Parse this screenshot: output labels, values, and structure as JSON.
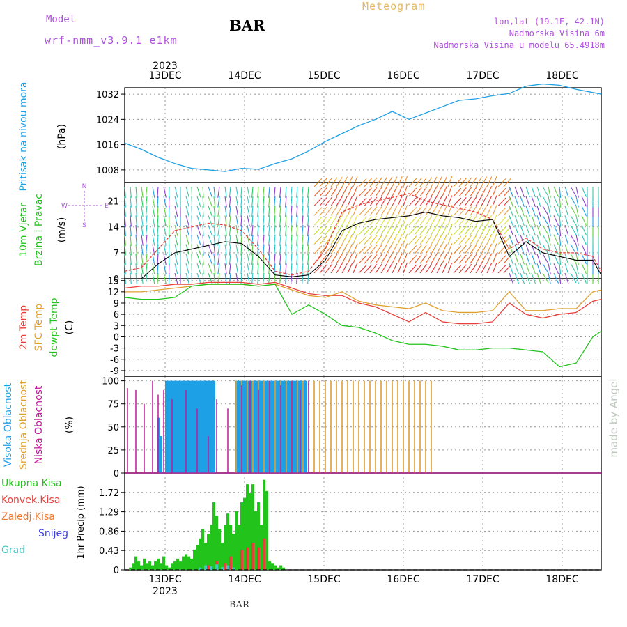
{
  "header": {
    "model_label": "Model",
    "model_name": "wrf-nmm_v3.9.1 e1km",
    "station": "BAR",
    "chart_title": "Meteogram",
    "lonlat": "lon,lat (19.1E, 42.1N)",
    "elevation": "Nadmorska Visina 6m",
    "model_elevation": "Nadmorska Visina u modelu 65.4918m",
    "footer": "BAR",
    "watermark": "made by Angel"
  },
  "axis": {
    "year": "2023",
    "day_labels": [
      "13DEC",
      "14DEC",
      "15DEC",
      "16DEC",
      "17DEC",
      "18DEC"
    ]
  },
  "colors": {
    "pressure": "#1ea0e6",
    "temp2m": "#e8403a",
    "sfc": "#e0a030",
    "dew": "#22c41c",
    "rain": "#22c41c",
    "conv": "#e8403a",
    "high_cloud": "#1ea0e6",
    "mid_cloud": "#e0a030",
    "low_cloud": "#c0189a",
    "label_purple": "#b050e0"
  },
  "chart_data": [
    {
      "type": "line",
      "panel": "pressure",
      "labels": [
        "Pritisak na nivou mora",
        "(hPa)"
      ],
      "yticks": [
        1008,
        1016,
        1024,
        1032
      ],
      "ylim": [
        1004,
        1034
      ],
      "series": [
        {
          "x": [
            0,
            6,
            12,
            18,
            24,
            30,
            36,
            42,
            48,
            54,
            60,
            66,
            72,
            78,
            84,
            90,
            96,
            102,
            108,
            114,
            120,
            126,
            132,
            138,
            144,
            150,
            156,
            162,
            168,
            171
          ],
          "values": [
            1016.5,
            1014.5,
            1012,
            1010,
            1008.5,
            1008,
            1007.5,
            1008.5,
            1008.2,
            1010,
            1011.5,
            1014,
            1017,
            1019.5,
            1022,
            1024,
            1026.5,
            1024,
            1026,
            1028,
            1030,
            1030.5,
            1031.5,
            1032.2,
            1034.5,
            1035.2,
            1034.8,
            1033.5,
            1032.5,
            1032
          ]
        }
      ]
    },
    {
      "type": "line",
      "panel": "wind",
      "labels": [
        "10m Vjetar",
        "Brzina i Pravac",
        "(m/s)"
      ],
      "compass": [
        "N",
        "W",
        "E",
        "S"
      ],
      "yticks": [
        0,
        7,
        14,
        21
      ],
      "ylim": [
        0,
        26
      ],
      "series": [
        {
          "name": "speed",
          "x": [
            0,
            6,
            12,
            18,
            24,
            30,
            36,
            42,
            48,
            54,
            60,
            66,
            72,
            78,
            84,
            90,
            96,
            102,
            108,
            114,
            120,
            126,
            132,
            138,
            144,
            150,
            156,
            162,
            168,
            171
          ],
          "values": [
            0,
            0,
            4,
            7,
            8,
            9,
            10,
            9.5,
            6,
            1,
            0.5,
            1,
            5,
            13,
            15,
            16,
            16.5,
            17,
            18,
            17,
            16.5,
            15.5,
            16,
            6,
            10,
            7,
            6,
            5,
            5,
            1
          ]
        },
        {
          "name": "gust",
          "x": [
            0,
            6,
            12,
            18,
            24,
            30,
            36,
            42,
            48,
            54,
            60,
            66,
            72,
            78,
            84,
            90,
            96,
            102,
            108,
            114,
            120,
            126,
            132,
            138,
            144,
            150,
            156,
            162,
            168,
            171
          ],
          "values": [
            2,
            3,
            8,
            13,
            14,
            15,
            14.5,
            13,
            8,
            2,
            1,
            2,
            8,
            18,
            20,
            21,
            22,
            23,
            21,
            20,
            19,
            18,
            16,
            8,
            11,
            8,
            7,
            7,
            6,
            2
          ]
        }
      ]
    },
    {
      "type": "line",
      "panel": "temperature",
      "labels": [
        "2m Temp",
        "SFC Temp",
        "dewpt Temp",
        "(C)"
      ],
      "yticks": [
        -9,
        -6,
        -3,
        0,
        3,
        6,
        9,
        12,
        15
      ],
      "ylim": [
        -10.5,
        15.5
      ],
      "series": [
        {
          "name": "2m Temp",
          "x": [
            0,
            6,
            12,
            18,
            24,
            30,
            36,
            42,
            48,
            54,
            60,
            66,
            72,
            78,
            84,
            90,
            96,
            102,
            108,
            114,
            120,
            126,
            132,
            138,
            144,
            150,
            156,
            162,
            168,
            171
          ],
          "values": [
            13,
            13.5,
            13.5,
            14,
            14,
            14.5,
            14.5,
            14.5,
            14,
            14.5,
            13,
            11.5,
            11,
            11,
            9,
            8,
            6,
            4,
            6.5,
            4,
            3.5,
            3.5,
            4,
            9,
            6,
            5,
            6,
            6.5,
            9.5,
            10
          ]
        },
        {
          "name": "SFC Temp",
          "x": [
            0,
            6,
            12,
            18,
            24,
            30,
            36,
            42,
            48,
            54,
            60,
            66,
            72,
            78,
            84,
            90,
            96,
            102,
            108,
            114,
            120,
            126,
            132,
            138,
            144,
            150,
            156,
            162,
            168,
            171
          ],
          "values": [
            12,
            12,
            12.5,
            13,
            13.5,
            14,
            14,
            14,
            13.5,
            14,
            12.5,
            11,
            10.5,
            12,
            9.5,
            8.5,
            8,
            7.5,
            9,
            7,
            6.5,
            6.5,
            7,
            12,
            7,
            7,
            7.5,
            7.5,
            12,
            12.5
          ]
        },
        {
          "name": "dewpt Temp",
          "x": [
            0,
            6,
            12,
            18,
            24,
            30,
            36,
            42,
            48,
            54,
            60,
            66,
            72,
            78,
            84,
            90,
            96,
            102,
            108,
            114,
            120,
            126,
            132,
            138,
            144,
            150,
            156,
            162,
            168,
            171
          ],
          "values": [
            10.5,
            10,
            10,
            10.5,
            13.5,
            14,
            14,
            14,
            13.5,
            14,
            6,
            8.5,
            6,
            3,
            2.5,
            1,
            -1,
            -2,
            -2,
            -2.5,
            -3.5,
            -3.5,
            -3,
            -3,
            -3.5,
            -4,
            -8,
            -7,
            0,
            1.5
          ]
        }
      ]
    },
    {
      "type": "bar",
      "panel": "cloud",
      "labels": [
        "Visoka Oblacnost",
        "Srednja Oblacnost",
        "Niska Oblacnost",
        "(%)"
      ],
      "yticks": [
        0,
        25,
        50,
        75,
        100
      ],
      "ylim": [
        0,
        105
      ],
      "series": [
        {
          "name": "Visoka Oblacnost",
          "x": [
            12,
            13,
            15,
            16,
            17,
            18,
            19,
            20,
            21,
            22,
            23,
            24,
            25,
            26,
            27,
            28,
            29,
            30,
            31,
            32,
            40,
            41,
            42,
            43,
            44,
            45,
            46,
            47,
            48,
            49,
            50,
            51,
            52,
            53,
            54,
            55,
            56,
            57,
            58,
            59,
            60,
            61,
            62,
            63,
            64,
            65
          ],
          "values": [
            60,
            40,
            100,
            100,
            100,
            100,
            100,
            100,
            100,
            100,
            100,
            100,
            100,
            100,
            100,
            100,
            100,
            100,
            100,
            100,
            100,
            100,
            100,
            100,
            100,
            100,
            100,
            100,
            100,
            100,
            100,
            100,
            100,
            100,
            100,
            100,
            100,
            100,
            100,
            100,
            100,
            100,
            100,
            100,
            100,
            100
          ]
        },
        {
          "name": "Srednja Oblacnost",
          "x": [
            40,
            42,
            44,
            46,
            48,
            50,
            52,
            54,
            56,
            58,
            60,
            62,
            64,
            66,
            68,
            70,
            72,
            74,
            76,
            78,
            80,
            82,
            84,
            86,
            88,
            90,
            92,
            94,
            96,
            98,
            100,
            102,
            104,
            106,
            108,
            110
          ],
          "values": [
            100,
            100,
            100,
            100,
            100,
            100,
            100,
            100,
            100,
            100,
            100,
            100,
            100,
            100,
            100,
            100,
            100,
            100,
            100,
            100,
            100,
            100,
            100,
            100,
            100,
            100,
            100,
            100,
            100,
            100,
            100,
            100,
            100,
            100,
            100,
            100
          ]
        },
        {
          "name": "Niska Oblacnost",
          "x": [
            1,
            4,
            7,
            10,
            12,
            14,
            17,
            22,
            26,
            30,
            33,
            37,
            42,
            45,
            48,
            52,
            56,
            60,
            63,
            66
          ],
          "values": [
            92,
            90,
            75,
            100,
            85,
            90,
            80,
            90,
            70,
            40,
            80,
            70,
            95,
            100,
            90,
            100,
            95,
            100,
            90,
            100
          ]
        }
      ]
    },
    {
      "type": "bar",
      "panel": "precip",
      "labels": [
        "Ukupna Kisa",
        "Konvek.Kisa",
        "Zaledj.Kisa",
        "Snijeg",
        "Grad",
        "1hr Precip (mm)"
      ],
      "yticks": [
        0,
        0.43,
        0.86,
        1.29,
        1.72
      ],
      "ylim": [
        0,
        2.15
      ],
      "series": [
        {
          "name": "Ukupna Kisa",
          "x": [
            2,
            3,
            4,
            5,
            6,
            7,
            8,
            9,
            10,
            11,
            12,
            13,
            14,
            15,
            16,
            17,
            18,
            19,
            20,
            21,
            22,
            23,
            24,
            25,
            26,
            27,
            28,
            29,
            30,
            31,
            32,
            33,
            34,
            35,
            36,
            37,
            38,
            39,
            40,
            41,
            42,
            43,
            44,
            45,
            46,
            47,
            48,
            49,
            50,
            51,
            52,
            53,
            54,
            55,
            56,
            57
          ],
          "values": [
            0.05,
            0.15,
            0.3,
            0.2,
            0.1,
            0.25,
            0.15,
            0.2,
            0.1,
            0.2,
            0.25,
            0.15,
            0.3,
            0.1,
            0.05,
            0.15,
            0.2,
            0.25,
            0.2,
            0.3,
            0.35,
            0.3,
            0.25,
            0.45,
            0.55,
            0.7,
            0.9,
            0.6,
            0.8,
            1.0,
            1.5,
            1.2,
            0.9,
            0.6,
            1.0,
            1.25,
            1.0,
            0.8,
            1.3,
            1.0,
            1.5,
            1.6,
            1.9,
            1.7,
            1.9,
            1.3,
            1.5,
            1.0,
            2.0,
            1.75,
            0.2,
            0.15,
            0.1,
            0.05,
            0.1,
            0.05
          ]
        },
        {
          "name": "Konvek.Kisa",
          "x": [
            30,
            33,
            36,
            38,
            42,
            44,
            46,
            48,
            50
          ],
          "values": [
            0.1,
            0.2,
            0.15,
            0.3,
            0.45,
            0.5,
            0.6,
            0.5,
            0.7
          ]
        },
        {
          "name": "Grad",
          "x": [
            27,
            29,
            31,
            33,
            35,
            37,
            39
          ],
          "values": [
            0.05,
            0.1,
            0.08,
            0.12,
            0.06,
            0.1,
            0.05
          ]
        }
      ]
    }
  ]
}
